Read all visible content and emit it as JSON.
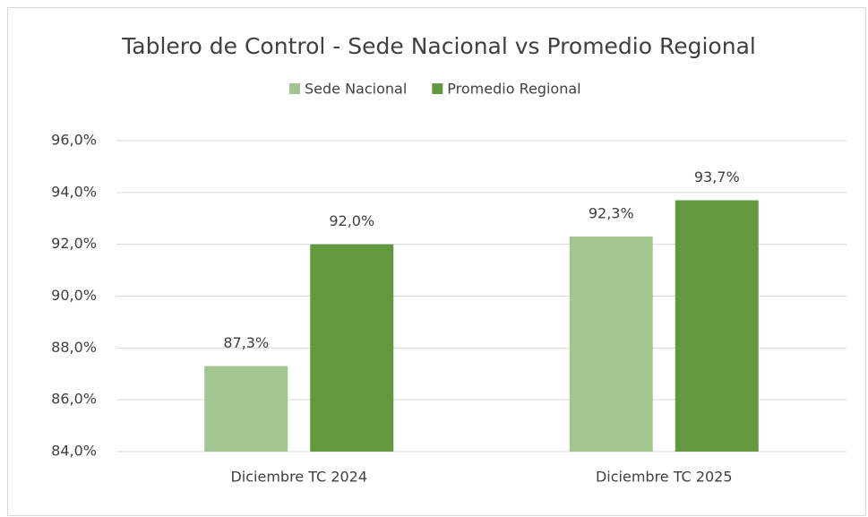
{
  "chart_data": {
    "type": "bar",
    "title": "Tablero de Control - Sede Nacional vs Promedio Regional",
    "categories": [
      "Diciembre TC 2024",
      "Diciembre TC 2025"
    ],
    "series": [
      {
        "name": "Sede Nacional",
        "color": "#a3c58f",
        "values": [
          87.3,
          92.3
        ],
        "value_labels": [
          "87,3%",
          "92,3%"
        ]
      },
      {
        "name": "Promedio Regional",
        "color": "#62993e",
        "values": [
          92.0,
          93.7
        ],
        "value_labels": [
          "92,0%",
          "93,7%"
        ]
      }
    ],
    "ylim": [
      84,
      96
    ],
    "yticks": [
      {
        "value": 84,
        "label": "84,0%"
      },
      {
        "value": 86,
        "label": "86,0%"
      },
      {
        "value": 88,
        "label": "88,0%"
      },
      {
        "value": 90,
        "label": "90,0%"
      },
      {
        "value": 92,
        "label": "92,0%"
      },
      {
        "value": 94,
        "label": "94,0%"
      },
      {
        "value": 96,
        "label": "96,0%"
      }
    ],
    "grid": true,
    "legend": "top"
  }
}
